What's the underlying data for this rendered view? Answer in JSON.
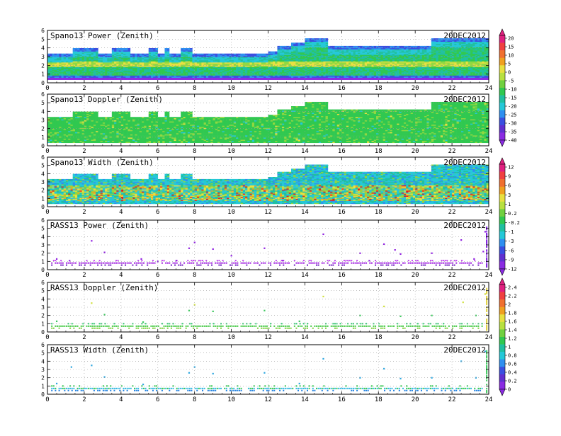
{
  "date_label": "20DEC2012",
  "x_ticks": [
    "0",
    "2",
    "4",
    "6",
    "8",
    "10",
    "12",
    "14",
    "16",
    "18",
    "20",
    "22",
    "24"
  ],
  "y_ticks": [
    "0",
    "1",
    "2",
    "3",
    "4",
    "5",
    "6"
  ],
  "colorbars": [
    {
      "panels": "Spano13 Power, Spano13 Doppler",
      "labels": [
        "20",
        "15",
        "10",
        "5",
        "0",
        "-5",
        "-10",
        "-15",
        "-20",
        "-25",
        "-30",
        "-35",
        "-40"
      ]
    },
    {
      "panels": "Spano13 Width, RASS13 Power",
      "labels": [
        "12",
        "9",
        "6",
        "3",
        "1",
        "0.2",
        "-0.2",
        "-1",
        "-3",
        "-6",
        "-9",
        "-12"
      ]
    },
    {
      "panels": "RASS13 Doppler, RASS13 Width",
      "labels": [
        "2.4",
        "2.2",
        "2",
        "1.8",
        "1.6",
        "1.4",
        "1.2",
        "1",
        "0.8",
        "0.6",
        "0.4",
        "0.2",
        "0"
      ]
    }
  ],
  "chart_data": [
    {
      "type": "heatmap",
      "title": "Spano13 Power (Zenith)",
      "x_range": [
        0,
        24
      ],
      "y_range": [
        0,
        6
      ],
      "grid": true,
      "profile_top_by_time": [
        {
          "hour": 0,
          "top": 3.4
        },
        {
          "hour": 1.3,
          "top": 3.9
        },
        {
          "hour": 12,
          "top": 3.4
        },
        {
          "hour": 12.3,
          "top": 4.2
        },
        {
          "hour": 14,
          "top": 5.0
        },
        {
          "hour": 15.2,
          "top": 4.2
        },
        {
          "hour": 20.8,
          "top": 5.0
        },
        {
          "hour": 24,
          "top": 5.0
        }
      ],
      "dominant_values": "-20 to -10 in 1-3 km, about 0 to -5 near 2 km, -40 near 0.5 km"
    },
    {
      "type": "heatmap",
      "title": "Spano13 Doppler (Zenith)",
      "x_range": [
        0,
        24
      ],
      "y_range": [
        0,
        6
      ],
      "grid": true,
      "dominant_values": "mostly -20 (green), scattered -10"
    },
    {
      "type": "heatmap",
      "title": "Spano13 Width (Zenith)",
      "x_range": [
        0,
        24
      ],
      "y_range": [
        0,
        6
      ],
      "grid": true,
      "dominant_values": "-1 to 1 bulk, 3 to 12 near 1-2.5 km"
    },
    {
      "type": "scatter",
      "title": "RASS13 Power (Zenith)",
      "x_range": [
        0,
        24
      ],
      "y_range": [
        0,
        6
      ],
      "grid": true,
      "band_height_km": 0.8,
      "band_value": -12,
      "points": [
        [
          0.5,
          1.3
        ],
        [
          1.2,
          1.1
        ],
        [
          2.4,
          3.5
        ],
        [
          3.1,
          2.1
        ],
        [
          5.1,
          1.3
        ],
        [
          6.0,
          1.0
        ],
        [
          7.0,
          1.1
        ],
        [
          7.7,
          2.6
        ],
        [
          8.0,
          3.3
        ],
        [
          9.0,
          2.5
        ],
        [
          10.0,
          1.7
        ],
        [
          11.8,
          2.6
        ],
        [
          12.8,
          1.1
        ],
        [
          15.0,
          4.3
        ],
        [
          17.0,
          2.0
        ],
        [
          17.5,
          1.1
        ],
        [
          18.3,
          3.1
        ],
        [
          18.9,
          2.4
        ],
        [
          19.2,
          1.9
        ],
        [
          20.9,
          2.0
        ],
        [
          22.5,
          3.6
        ],
        [
          23.2,
          1.3
        ],
        [
          23.7,
          2.2
        ],
        [
          23.8,
          4.6
        ]
      ]
    },
    {
      "type": "scatter",
      "title": "RASS13 Doppler (Zenith)",
      "x_range": [
        0,
        24
      ],
      "y_range": [
        0,
        6
      ],
      "grid": true,
      "band_height_km": 0.7,
      "band_value": 1.2,
      "points": [
        [
          0.5,
          1.3
        ],
        [
          2.4,
          3.5
        ],
        [
          3.1,
          2.1
        ],
        [
          5.2,
          1.2
        ],
        [
          7.7,
          2.6
        ],
        [
          8.0,
          3.3
        ],
        [
          9.0,
          2.5
        ],
        [
          11.8,
          2.6
        ],
        [
          13.7,
          1.3
        ],
        [
          15.0,
          4.3
        ],
        [
          17.0,
          2.0
        ],
        [
          18.3,
          3.1
        ],
        [
          19.2,
          1.9
        ],
        [
          20.9,
          2.0
        ],
        [
          22.6,
          3.6
        ],
        [
          23.3,
          2.0
        ],
        [
          23.8,
          4.6
        ]
      ]
    },
    {
      "type": "scatter",
      "title": "RASS13 Width (Zenith)",
      "x_range": [
        0,
        24
      ],
      "y_range": [
        0,
        6
      ],
      "grid": true,
      "band_height_km": 0.7,
      "band_value": 1.0,
      "points": [
        [
          0.5,
          1.3
        ],
        [
          1.3,
          3.3
        ],
        [
          2.4,
          3.5
        ],
        [
          3.1,
          2.1
        ],
        [
          5.2,
          1.2
        ],
        [
          7.7,
          2.6
        ],
        [
          8.0,
          3.3
        ],
        [
          9.0,
          2.5
        ],
        [
          11.8,
          2.6
        ],
        [
          13.7,
          1.3
        ],
        [
          15.0,
          4.3
        ],
        [
          17.0,
          2.0
        ],
        [
          18.3,
          3.1
        ],
        [
          19.2,
          1.9
        ],
        [
          20.9,
          2.0
        ],
        [
          22.5,
          4.0
        ],
        [
          23.3,
          2.0
        ],
        [
          23.8,
          5.2
        ]
      ]
    }
  ]
}
